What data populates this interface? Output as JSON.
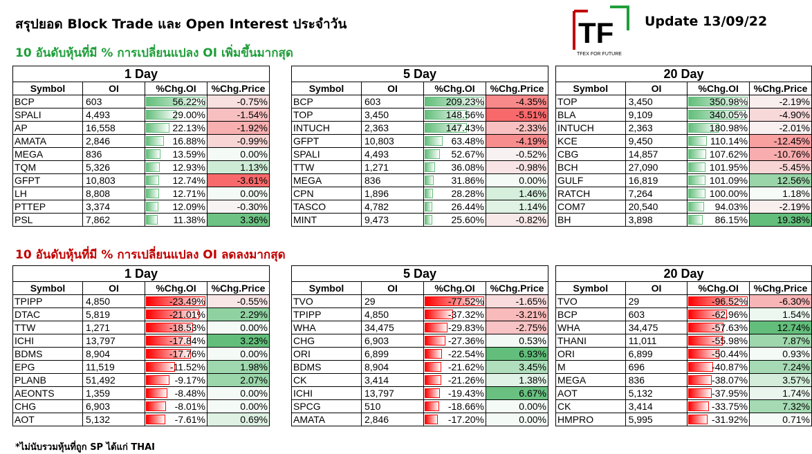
{
  "title": "สรุปยอด Block Trade และ Open Interest ประจำวัน",
  "update": "Update 13/09/22",
  "logo": {
    "letters": "TF",
    "tagline": "TFEX FOR FUTURE"
  },
  "footnote": "*ไม่นับรวมหุ้นที่ถูก SP ได้แก่ THAI",
  "columns": [
    "Symbol",
    "OI",
    "%Chg.OI",
    "%Chg.Price"
  ],
  "colors": {
    "up_title": "#1f9e3a",
    "down_title": "#c00000",
    "bar_green": "#63be7b",
    "bar_red": "#ff0000"
  },
  "sections": [
    {
      "heading": "10 อันดับหุ้นที่มี % การเปลี่ยนแปลง OI เพิ่มขึ้นมากสุด",
      "tables": [
        {
          "period": "1 Day",
          "rows": [
            [
              "BCP",
              "603",
              "56.22%",
              "-0.75%"
            ],
            [
              "SPALI",
              "4,493",
              "29.00%",
              "-1.54%"
            ],
            [
              "AP",
              "16,558",
              "22.13%",
              "-1.92%"
            ],
            [
              "AMATA",
              "2,846",
              "16.88%",
              "-0.99%"
            ],
            [
              "MEGA",
              "836",
              "13.59%",
              "0.00%"
            ],
            [
              "TQM",
              "5,326",
              "12.93%",
              "1.13%"
            ],
            [
              "GFPT",
              "10,803",
              "12.74%",
              "-3.61%"
            ],
            [
              "LH",
              "8,808",
              "12.71%",
              "0.00%"
            ],
            [
              "PTTEP",
              "3,374",
              "12.09%",
              "-0.30%"
            ],
            [
              "PSL",
              "7,862",
              "11.38%",
              "3.36%"
            ]
          ]
        },
        {
          "period": "5 Day",
          "rows": [
            [
              "BCP",
              "603",
              "209.23%",
              "-4.35%"
            ],
            [
              "TOP",
              "3,450",
              "148.56%",
              "-5.51%"
            ],
            [
              "INTUCH",
              "2,363",
              "147.43%",
              "-2.33%"
            ],
            [
              "GFPT",
              "10,803",
              "63.48%",
              "-4.19%"
            ],
            [
              "SPALI",
              "4,493",
              "52.67%",
              "-0.52%"
            ],
            [
              "TTW",
              "1,271",
              "36.08%",
              "-0.98%"
            ],
            [
              "MEGA",
              "836",
              "31.86%",
              "0.00%"
            ],
            [
              "CPN",
              "1,896",
              "28.28%",
              "1.46%"
            ],
            [
              "TASCO",
              "4,782",
              "26.44%",
              "1.14%"
            ],
            [
              "MINT",
              "9,473",
              "25.60%",
              "-0.82%"
            ]
          ]
        },
        {
          "period": "20 Day",
          "rows": [
            [
              "TOP",
              "3,450",
              "350.98%",
              "-2.19%"
            ],
            [
              "BLA",
              "9,109",
              "340.05%",
              "-4.90%"
            ],
            [
              "INTUCH",
              "2,363",
              "180.98%",
              "-2.01%"
            ],
            [
              "KCE",
              "9,450",
              "110.14%",
              "-12.45%"
            ],
            [
              "CBG",
              "14,857",
              "107.62%",
              "-10.76%"
            ],
            [
              "BCH",
              "27,090",
              "101.95%",
              "-5.45%"
            ],
            [
              "GULF",
              "16,819",
              "101.09%",
              "12.56%"
            ],
            [
              "RATCH",
              "7,264",
              "100.00%",
              "1.18%"
            ],
            [
              "COM7",
              "20,540",
              "94.03%",
              "-2.19%"
            ],
            [
              "BH",
              "3,898",
              "86.15%",
              "19.38%"
            ]
          ]
        }
      ]
    },
    {
      "heading": "10 อันดับหุ้นที่มี % การเปลี่ยนแปลง OI ลดลงมากสุด",
      "tables": [
        {
          "period": "1 Day",
          "rows": [
            [
              "TPIPP",
              "4,850",
              "-23.49%",
              "-0.55%"
            ],
            [
              "DTAC",
              "5,819",
              "-21.01%",
              "2.29%"
            ],
            [
              "TTW",
              "1,271",
              "-18.53%",
              "0.00%"
            ],
            [
              "ICHI",
              "13,797",
              "-17.84%",
              "3.23%"
            ],
            [
              "BDMS",
              "8,904",
              "-17.76%",
              "0.00%"
            ],
            [
              "EPG",
              "11,519",
              "-11.52%",
              "1.98%"
            ],
            [
              "PLANB",
              "51,492",
              "-9.17%",
              "2.07%"
            ],
            [
              "AEONTS",
              "1,359",
              "-8.48%",
              "0.00%"
            ],
            [
              "CHG",
              "6,903",
              "-8.01%",
              "0.00%"
            ],
            [
              "AOT",
              "5,132",
              "-7.61%",
              "0.69%"
            ]
          ]
        },
        {
          "period": "5 Day",
          "rows": [
            [
              "TVO",
              "29",
              "-77.52%",
              "-1.65%"
            ],
            [
              "TPIPP",
              "4,850",
              "-37.32%",
              "-3.21%"
            ],
            [
              "WHA",
              "34,475",
              "-29.83%",
              "-2.75%"
            ],
            [
              "CHG",
              "6,903",
              "-27.36%",
              "0.53%"
            ],
            [
              "ORI",
              "6,899",
              "-22.54%",
              "6.93%"
            ],
            [
              "BDMS",
              "8,904",
              "-21.62%",
              "3.45%"
            ],
            [
              "CK",
              "3,414",
              "-21.26%",
              "1.38%"
            ],
            [
              "ICHI",
              "13,797",
              "-19.43%",
              "6.67%"
            ],
            [
              "SPCG",
              "510",
              "-18.66%",
              "0.00%"
            ],
            [
              "AMATA",
              "2,846",
              "-17.20%",
              "0.00%"
            ]
          ]
        },
        {
          "period": "20 Day",
          "rows": [
            [
              "TVO",
              "29",
              "-96.52%",
              "-6.30%"
            ],
            [
              "BCP",
              "603",
              "-62.96%",
              "1.54%"
            ],
            [
              "WHA",
              "34,475",
              "-57.63%",
              "12.74%"
            ],
            [
              "THANI",
              "11,011",
              "-55.98%",
              "7.87%"
            ],
            [
              "ORI",
              "6,899",
              "-50.44%",
              "0.93%"
            ],
            [
              "M",
              "696",
              "-40.87%",
              "7.24%"
            ],
            [
              "MEGA",
              "836",
              "-38.07%",
              "3.57%"
            ],
            [
              "AOT",
              "5,132",
              "-37.95%",
              "1.74%"
            ],
            [
              "CK",
              "3,414",
              "-33.75%",
              "7.32%"
            ],
            [
              "HMPRO",
              "5,995",
              "-31.92%",
              "0.71%"
            ]
          ]
        }
      ]
    }
  ]
}
